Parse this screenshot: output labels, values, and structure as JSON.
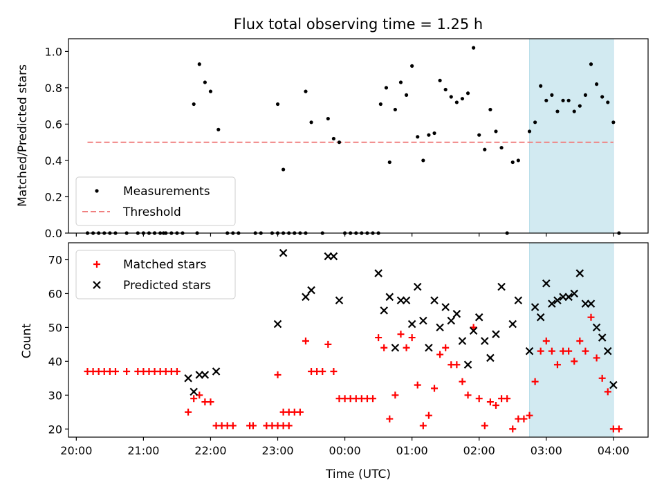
{
  "figure": {
    "title": "Flux total observing time = 1.25 h"
  },
  "chart_data": [
    {
      "type": "scatter",
      "panel": "top",
      "ylabel": "Matched/Predicted stars",
      "xlim": [
        "19:53",
        "04:31"
      ],
      "ylim": [
        0,
        1.07
      ],
      "yticks": [
        0,
        0.2,
        0.4,
        0.6,
        0.8,
        1.0
      ],
      "ytick_labels": [
        "0.0",
        "0.2",
        "0.4",
        "0.6",
        "0.8",
        "1.0"
      ],
      "xticks": [
        "20:00",
        "21:00",
        "22:00",
        "23:00",
        "00:00",
        "01:00",
        "02:00",
        "03:00",
        "04:00"
      ],
      "highlight_span": {
        "start": "02:45",
        "end": "04:00",
        "color": "#add8e6"
      },
      "threshold": {
        "name": "Threshold",
        "value": 0.5,
        "x_range": [
          "20:10",
          "04:00"
        ],
        "color": "#f08080"
      },
      "legend": {
        "position": "lower-left"
      },
      "series": [
        {
          "name": "Measurements",
          "color": "#000000",
          "marker": "dot",
          "points": [
            [
              "20:10",
              0
            ],
            [
              "20:15",
              0
            ],
            [
              "20:20",
              0
            ],
            [
              "20:25",
              0
            ],
            [
              "20:30",
              0
            ],
            [
              "20:35",
              0
            ],
            [
              "20:45",
              0
            ],
            [
              "20:55",
              0
            ],
            [
              "21:00",
              0
            ],
            [
              "21:05",
              0
            ],
            [
              "21:10",
              0
            ],
            [
              "21:15",
              0
            ],
            [
              "21:20",
              0
            ],
            [
              "21:25",
              0
            ],
            [
              "21:30",
              0
            ],
            [
              "21:35",
              0
            ],
            [
              "21:45",
              0.71
            ],
            [
              "21:50",
              0.93
            ],
            [
              "21:55",
              0.83
            ],
            [
              "22:00",
              0.78
            ],
            [
              "21:10",
              0
            ],
            [
              "21:18",
              0
            ],
            [
              "21:48",
              0
            ],
            [
              "22:07",
              0.57
            ],
            [
              "22:15",
              0
            ],
            [
              "22:20",
              0
            ],
            [
              "22:25",
              0
            ],
            [
              "22:40",
              0
            ],
            [
              "22:45",
              0
            ],
            [
              "22:55",
              0
            ],
            [
              "23:00",
              0
            ],
            [
              "23:05",
              0
            ],
            [
              "23:10",
              0
            ],
            [
              "23:15",
              0
            ],
            [
              "23:00",
              0.71
            ],
            [
              "23:05",
              0.35
            ],
            [
              "23:15",
              0
            ],
            [
              "23:20",
              0
            ],
            [
              "23:25",
              0
            ],
            [
              "23:25",
              0.78
            ],
            [
              "23:30",
              0.61
            ],
            [
              "23:40",
              0
            ],
            [
              "23:45",
              0.63
            ],
            [
              "23:50",
              0.52
            ],
            [
              "23:55",
              0.5
            ],
            [
              "00:00",
              0
            ],
            [
              "00:05",
              0
            ],
            [
              "00:10",
              0
            ],
            [
              "00:15",
              0
            ],
            [
              "00:20",
              0
            ],
            [
              "00:25",
              0
            ],
            [
              "00:30",
              0
            ],
            [
              "00:32",
              0.71
            ],
            [
              "00:37",
              0.8
            ],
            [
              "00:40",
              0.39
            ],
            [
              "00:45",
              0.68
            ],
            [
              "00:50",
              0.83
            ],
            [
              "00:55",
              0.76
            ],
            [
              "01:00",
              0.92
            ],
            [
              "01:05",
              0.53
            ],
            [
              "01:10",
              0.4
            ],
            [
              "01:15",
              0.54
            ],
            [
              "01:20",
              0.55
            ],
            [
              "01:25",
              0.84
            ],
            [
              "01:30",
              0.79
            ],
            [
              "01:35",
              0.75
            ],
            [
              "01:40",
              0.72
            ],
            [
              "01:45",
              0.74
            ],
            [
              "01:50",
              0.77
            ],
            [
              "01:55",
              1.02
            ],
            [
              "02:00",
              0.54
            ],
            [
              "02:05",
              0.46
            ],
            [
              "02:10",
              0.68
            ],
            [
              "02:15",
              0.56
            ],
            [
              "02:20",
              0.47
            ],
            [
              "02:25",
              0
            ],
            [
              "02:30",
              0.39
            ],
            [
              "02:35",
              0.4
            ],
            [
              "02:45",
              0.56
            ],
            [
              "02:50",
              0.61
            ],
            [
              "02:55",
              0.81
            ],
            [
              "03:00",
              0.73
            ],
            [
              "03:05",
              0.76
            ],
            [
              "03:10",
              0.67
            ],
            [
              "03:15",
              0.73
            ],
            [
              "03:20",
              0.73
            ],
            [
              "03:25",
              0.67
            ],
            [
              "03:30",
              0.7
            ],
            [
              "03:35",
              0.76
            ],
            [
              "03:40",
              0.93
            ],
            [
              "03:45",
              0.82
            ],
            [
              "03:50",
              0.75
            ],
            [
              "03:55",
              0.72
            ],
            [
              "04:00",
              0.61
            ],
            [
              "04:05",
              0
            ]
          ]
        }
      ]
    },
    {
      "type": "scatter",
      "panel": "bottom",
      "xlabel": "Time (UTC)",
      "ylabel": "Count",
      "xlim": [
        "19:53",
        "04:31"
      ],
      "ylim": [
        17.6,
        75
      ],
      "yticks": [
        20,
        30,
        40,
        50,
        60,
        70
      ],
      "ytick_labels": [
        "20",
        "30",
        "40",
        "50",
        "60",
        "70"
      ],
      "xticks": [
        "20:00",
        "21:00",
        "22:00",
        "23:00",
        "00:00",
        "01:00",
        "02:00",
        "03:00",
        "04:00"
      ],
      "xtick_labels": [
        "20:00",
        "21:00",
        "22:00",
        "23:00",
        "00:00",
        "01:00",
        "02:00",
        "03:00",
        "04:00"
      ],
      "highlight_span": {
        "start": "02:45",
        "end": "04:00",
        "color": "#add8e6"
      },
      "legend": {
        "position": "upper-left"
      },
      "series": [
        {
          "name": "Matched stars",
          "color": "#ff0000",
          "marker": "plus",
          "points": [
            [
              "20:10",
              37
            ],
            [
              "20:15",
              37
            ],
            [
              "20:20",
              37
            ],
            [
              "20:25",
              37
            ],
            [
              "20:30",
              37
            ],
            [
              "20:35",
              37
            ],
            [
              "20:45",
              37
            ],
            [
              "20:55",
              37
            ],
            [
              "21:00",
              37
            ],
            [
              "21:05",
              37
            ],
            [
              "21:10",
              37
            ],
            [
              "21:15",
              37
            ],
            [
              "21:20",
              37
            ],
            [
              "21:25",
              37
            ],
            [
              "21:30",
              37
            ],
            [
              "21:40",
              25
            ],
            [
              "21:45",
              29
            ],
            [
              "21:50",
              30
            ],
            [
              "21:55",
              28
            ],
            [
              "22:00",
              28
            ],
            [
              "22:05",
              21
            ],
            [
              "22:10",
              21
            ],
            [
              "22:15",
              21
            ],
            [
              "22:20",
              21
            ],
            [
              "22:35",
              21
            ],
            [
              "22:38",
              21
            ],
            [
              "22:50",
              21
            ],
            [
              "22:55",
              21
            ],
            [
              "23:00",
              21
            ],
            [
              "23:05",
              21
            ],
            [
              "23:10",
              21
            ],
            [
              "23:00",
              36
            ],
            [
              "23:05",
              25
            ],
            [
              "23:10",
              25
            ],
            [
              "23:15",
              25
            ],
            [
              "23:20",
              25
            ],
            [
              "23:25",
              46
            ],
            [
              "23:30",
              37
            ],
            [
              "23:35",
              37
            ],
            [
              "23:40",
              37
            ],
            [
              "23:45",
              45
            ],
            [
              "23:50",
              37
            ],
            [
              "23:55",
              29
            ],
            [
              "00:00",
              29
            ],
            [
              "00:05",
              29
            ],
            [
              "00:10",
              29
            ],
            [
              "00:15",
              29
            ],
            [
              "00:20",
              29
            ],
            [
              "00:25",
              29
            ],
            [
              "00:30",
              47
            ],
            [
              "00:35",
              44
            ],
            [
              "00:40",
              23
            ],
            [
              "00:45",
              30
            ],
            [
              "00:50",
              48
            ],
            [
              "00:55",
              44
            ],
            [
              "01:00",
              47
            ],
            [
              "01:05",
              33
            ],
            [
              "01:10",
              21
            ],
            [
              "01:15",
              24
            ],
            [
              "01:20",
              32
            ],
            [
              "01:25",
              42
            ],
            [
              "01:30",
              44
            ],
            [
              "01:35",
              39
            ],
            [
              "01:40",
              39
            ],
            [
              "01:45",
              34
            ],
            [
              "01:50",
              30
            ],
            [
              "01:55",
              50
            ],
            [
              "02:00",
              29
            ],
            [
              "02:05",
              21
            ],
            [
              "02:10",
              28
            ],
            [
              "02:15",
              27
            ],
            [
              "02:20",
              29
            ],
            [
              "02:25",
              29
            ],
            [
              "02:30",
              20
            ],
            [
              "02:35",
              23
            ],
            [
              "02:40",
              23
            ],
            [
              "02:45",
              24
            ],
            [
              "02:50",
              34
            ],
            [
              "02:55",
              43
            ],
            [
              "03:00",
              46
            ],
            [
              "03:05",
              43
            ],
            [
              "03:10",
              39
            ],
            [
              "03:15",
              43
            ],
            [
              "03:20",
              43
            ],
            [
              "03:25",
              40
            ],
            [
              "03:30",
              46
            ],
            [
              "03:35",
              43
            ],
            [
              "03:40",
              53
            ],
            [
              "03:45",
              41
            ],
            [
              "03:50",
              35
            ],
            [
              "03:55",
              31
            ],
            [
              "04:00",
              20
            ],
            [
              "04:05",
              20
            ]
          ]
        },
        {
          "name": "Predicted stars",
          "color": "#000000",
          "marker": "cross",
          "points": [
            [
              "21:40",
              35
            ],
            [
              "21:45",
              31
            ],
            [
              "21:50",
              36
            ],
            [
              "21:55",
              36
            ],
            [
              "22:05",
              37
            ],
            [
              "23:00",
              51
            ],
            [
              "23:05",
              72
            ],
            [
              "23:25",
              59
            ],
            [
              "23:30",
              61
            ],
            [
              "23:45",
              71
            ],
            [
              "23:50",
              71
            ],
            [
              "23:55",
              58
            ],
            [
              "00:30",
              66
            ],
            [
              "00:35",
              55
            ],
            [
              "00:40",
              59
            ],
            [
              "00:45",
              44
            ],
            [
              "00:50",
              58
            ],
            [
              "00:55",
              58
            ],
            [
              "01:00",
              51
            ],
            [
              "01:05",
              62
            ],
            [
              "01:10",
              52
            ],
            [
              "01:15",
              44
            ],
            [
              "01:20",
              58
            ],
            [
              "01:25",
              50
            ],
            [
              "01:30",
              56
            ],
            [
              "01:35",
              52
            ],
            [
              "01:40",
              54
            ],
            [
              "01:45",
              46
            ],
            [
              "01:50",
              39
            ],
            [
              "01:55",
              49
            ],
            [
              "02:00",
              53
            ],
            [
              "02:05",
              46
            ],
            [
              "02:10",
              41
            ],
            [
              "02:15",
              48
            ],
            [
              "02:20",
              62
            ],
            [
              "02:30",
              51
            ],
            [
              "02:35",
              58
            ],
            [
              "02:45",
              43
            ],
            [
              "02:50",
              56
            ],
            [
              "02:55",
              53
            ],
            [
              "03:00",
              63
            ],
            [
              "03:05",
              57
            ],
            [
              "03:10",
              58
            ],
            [
              "03:15",
              59
            ],
            [
              "03:20",
              59
            ],
            [
              "03:25",
              60
            ],
            [
              "03:30",
              66
            ],
            [
              "03:35",
              57
            ],
            [
              "03:40",
              57
            ],
            [
              "03:45",
              50
            ],
            [
              "03:50",
              47
            ],
            [
              "03:55",
              43
            ],
            [
              "04:00",
              33
            ]
          ]
        }
      ]
    }
  ]
}
